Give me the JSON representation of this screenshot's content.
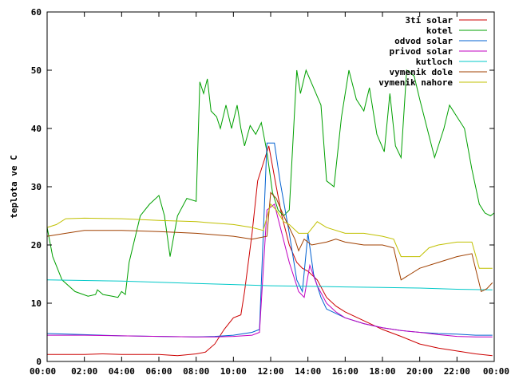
{
  "chart_data": {
    "type": "line",
    "title": "",
    "xlabel": "",
    "ylabel": "teplota ve C",
    "xlim": [
      0,
      24
    ],
    "ylim": [
      0,
      60
    ],
    "grid": false,
    "legend_position": "top-right",
    "xticks": [
      "00:00",
      "02:00",
      "04:00",
      "06:00",
      "08:00",
      "10:00",
      "12:00",
      "14:00",
      "16:00",
      "18:00",
      "20:00",
      "22:00",
      "00:00"
    ],
    "yticks": [
      0,
      10,
      20,
      30,
      40,
      50,
      60
    ],
    "series": [
      {
        "name": "3ti solar",
        "color": "#cc0000",
        "points": [
          [
            0,
            1.2
          ],
          [
            2,
            1.2
          ],
          [
            3,
            1.3
          ],
          [
            4,
            1.2
          ],
          [
            6,
            1.2
          ],
          [
            7,
            1
          ],
          [
            8,
            1.3
          ],
          [
            8.5,
            1.6
          ],
          [
            9,
            3
          ],
          [
            9.5,
            5.5
          ],
          [
            10,
            7.5
          ],
          [
            10.4,
            8
          ],
          [
            10.6,
            12
          ],
          [
            11,
            22
          ],
          [
            11.3,
            31
          ],
          [
            11.7,
            35
          ],
          [
            11.9,
            37
          ],
          [
            12.3,
            30
          ],
          [
            12.6,
            25
          ],
          [
            13,
            20
          ],
          [
            13.4,
            17
          ],
          [
            13.7,
            16
          ],
          [
            14,
            15.5
          ],
          [
            14.5,
            14
          ],
          [
            15,
            11
          ],
          [
            15.5,
            9.5
          ],
          [
            16,
            8.5
          ],
          [
            17,
            7
          ],
          [
            18,
            5.5
          ],
          [
            19,
            4.3
          ],
          [
            20,
            3
          ],
          [
            21,
            2.3
          ],
          [
            22,
            1.8
          ],
          [
            23,
            1.3
          ],
          [
            23.9,
            1
          ]
        ]
      },
      {
        "name": "kotel",
        "color": "#00a000",
        "points": [
          [
            0,
            23
          ],
          [
            0.3,
            18
          ],
          [
            0.8,
            14
          ],
          [
            1.5,
            12
          ],
          [
            2.2,
            11.2
          ],
          [
            2.6,
            11.5
          ],
          [
            2.7,
            12.3
          ],
          [
            3,
            11.5
          ],
          [
            3.5,
            11.2
          ],
          [
            3.8,
            11
          ],
          [
            4,
            12
          ],
          [
            4.2,
            11.5
          ],
          [
            4.4,
            17
          ],
          [
            5,
            25
          ],
          [
            5.5,
            27
          ],
          [
            6,
            28.5
          ],
          [
            6.3,
            25
          ],
          [
            6.6,
            18
          ],
          [
            7,
            25
          ],
          [
            7.5,
            28
          ],
          [
            8,
            27.5
          ],
          [
            8.2,
            48
          ],
          [
            8.4,
            46
          ],
          [
            8.6,
            48.5
          ],
          [
            8.8,
            43
          ],
          [
            9.1,
            42
          ],
          [
            9.3,
            40
          ],
          [
            9.6,
            44
          ],
          [
            9.9,
            40
          ],
          [
            10.2,
            44
          ],
          [
            10.4,
            40
          ],
          [
            10.6,
            37
          ],
          [
            10.9,
            40.5
          ],
          [
            11.2,
            39
          ],
          [
            11.5,
            41
          ],
          [
            11.8,
            36
          ],
          [
            12.1,
            29
          ],
          [
            12.4,
            26
          ],
          [
            12.7,
            25
          ],
          [
            13,
            26
          ],
          [
            13.4,
            50
          ],
          [
            13.6,
            46
          ],
          [
            13.9,
            50
          ],
          [
            14.3,
            47
          ],
          [
            14.7,
            44
          ],
          [
            15,
            31
          ],
          [
            15.4,
            30
          ],
          [
            15.8,
            42
          ],
          [
            16.2,
            50
          ],
          [
            16.6,
            45
          ],
          [
            17,
            43
          ],
          [
            17.3,
            47
          ],
          [
            17.7,
            39
          ],
          [
            18.1,
            36
          ],
          [
            18.4,
            46
          ],
          [
            18.7,
            37
          ],
          [
            19,
            35
          ],
          [
            19.3,
            50
          ],
          [
            19.7,
            49
          ],
          [
            20,
            45
          ],
          [
            20.4,
            40
          ],
          [
            20.8,
            35
          ],
          [
            21.3,
            40
          ],
          [
            21.6,
            44
          ],
          [
            22,
            42
          ],
          [
            22.4,
            40
          ],
          [
            22.8,
            33
          ],
          [
            23.2,
            27
          ],
          [
            23.5,
            25.5
          ],
          [
            23.8,
            25
          ],
          [
            24,
            25.5
          ]
        ]
      },
      {
        "name": "odvod solar",
        "color": "#0060d0",
        "points": [
          [
            0,
            4.8
          ],
          [
            2,
            4.6
          ],
          [
            4,
            4.4
          ],
          [
            6,
            4.3
          ],
          [
            8,
            4.2
          ],
          [
            9,
            4.3
          ],
          [
            10,
            4.5
          ],
          [
            11,
            5
          ],
          [
            11.4,
            5.5
          ],
          [
            11.8,
            37.5
          ],
          [
            12.2,
            37.5
          ],
          [
            12.5,
            31
          ],
          [
            13,
            22
          ],
          [
            13.4,
            14
          ],
          [
            13.7,
            12
          ],
          [
            14,
            22
          ],
          [
            14.3,
            15
          ],
          [
            14.7,
            11
          ],
          [
            15,
            9
          ],
          [
            16,
            7.5
          ],
          [
            17,
            6.5
          ],
          [
            18,
            5.8
          ],
          [
            19,
            5.3
          ],
          [
            20,
            5
          ],
          [
            21,
            4.8
          ],
          [
            22,
            4.7
          ],
          [
            23,
            4.5
          ],
          [
            23.9,
            4.5
          ]
        ]
      },
      {
        "name": "privod solar",
        "color": "#c000c0",
        "points": [
          [
            0,
            4.5
          ],
          [
            2,
            4.5
          ],
          [
            4,
            4.4
          ],
          [
            6,
            4.3
          ],
          [
            8,
            4.2
          ],
          [
            9,
            4.2
          ],
          [
            10,
            4.3
          ],
          [
            11,
            4.5
          ],
          [
            11.4,
            5
          ],
          [
            11.8,
            26
          ],
          [
            12.2,
            27
          ],
          [
            12.6,
            22
          ],
          [
            13,
            17
          ],
          [
            13.5,
            12
          ],
          [
            13.8,
            11
          ],
          [
            14.1,
            16.5
          ],
          [
            14.5,
            13
          ],
          [
            15,
            10
          ],
          [
            15.5,
            8.5
          ],
          [
            16,
            7.5
          ],
          [
            17,
            6.5
          ],
          [
            18,
            5.8
          ],
          [
            19,
            5.3
          ],
          [
            20,
            5
          ],
          [
            21,
            4.6
          ],
          [
            22,
            4.3
          ],
          [
            23,
            4.2
          ],
          [
            23.9,
            4.2
          ]
        ]
      },
      {
        "name": "kutloch",
        "color": "#00c8c8",
        "points": [
          [
            0,
            14
          ],
          [
            2,
            13.9
          ],
          [
            4,
            13.8
          ],
          [
            6,
            13.6
          ],
          [
            8,
            13.4
          ],
          [
            10,
            13.2
          ],
          [
            12,
            13
          ],
          [
            14,
            12.9
          ],
          [
            16,
            12.8
          ],
          [
            18,
            12.7
          ],
          [
            20,
            12.6
          ],
          [
            22,
            12.4
          ],
          [
            23.9,
            12.3
          ]
        ]
      },
      {
        "name": "vymenik dole",
        "color": "#a04000",
        "points": [
          [
            0,
            21.5
          ],
          [
            1,
            22
          ],
          [
            2,
            22.5
          ],
          [
            4,
            22.5
          ],
          [
            6,
            22.3
          ],
          [
            8,
            22
          ],
          [
            10,
            21.5
          ],
          [
            11,
            21
          ],
          [
            11.8,
            21.5
          ],
          [
            12,
            29
          ],
          [
            12.3,
            28
          ],
          [
            12.7,
            25
          ],
          [
            13,
            23
          ],
          [
            13.3,
            21
          ],
          [
            13.5,
            19
          ],
          [
            13.8,
            21
          ],
          [
            14.2,
            20
          ],
          [
            15,
            20.5
          ],
          [
            15.5,
            21
          ],
          [
            16,
            20.5
          ],
          [
            17,
            20
          ],
          [
            18,
            20
          ],
          [
            18.6,
            19.5
          ],
          [
            19,
            14
          ],
          [
            19.5,
            15
          ],
          [
            20,
            16
          ],
          [
            21,
            17
          ],
          [
            22,
            18
          ],
          [
            22.8,
            18.5
          ],
          [
            23.3,
            12
          ],
          [
            23.6,
            12.5
          ],
          [
            23.9,
            13.5
          ]
        ]
      },
      {
        "name": "vymenik nahore",
        "color": "#c0c000",
        "points": [
          [
            0,
            23
          ],
          [
            0.5,
            23.5
          ],
          [
            1,
            24.5
          ],
          [
            2,
            24.6
          ],
          [
            4,
            24.5
          ],
          [
            6,
            24.2
          ],
          [
            8,
            24
          ],
          [
            10,
            23.5
          ],
          [
            11,
            23
          ],
          [
            11.6,
            22.5
          ],
          [
            12,
            27
          ],
          [
            12.3,
            26
          ],
          [
            12.7,
            24
          ],
          [
            13,
            23.5
          ],
          [
            13.5,
            22
          ],
          [
            14,
            22
          ],
          [
            14.5,
            24
          ],
          [
            15,
            23
          ],
          [
            16,
            22
          ],
          [
            17,
            22
          ],
          [
            18,
            21.5
          ],
          [
            18.6,
            21
          ],
          [
            19,
            18
          ],
          [
            20,
            18
          ],
          [
            20.5,
            19.5
          ],
          [
            21,
            20
          ],
          [
            22,
            20.5
          ],
          [
            22.8,
            20.5
          ],
          [
            23.2,
            16
          ],
          [
            23.9,
            16
          ]
        ]
      }
    ]
  }
}
